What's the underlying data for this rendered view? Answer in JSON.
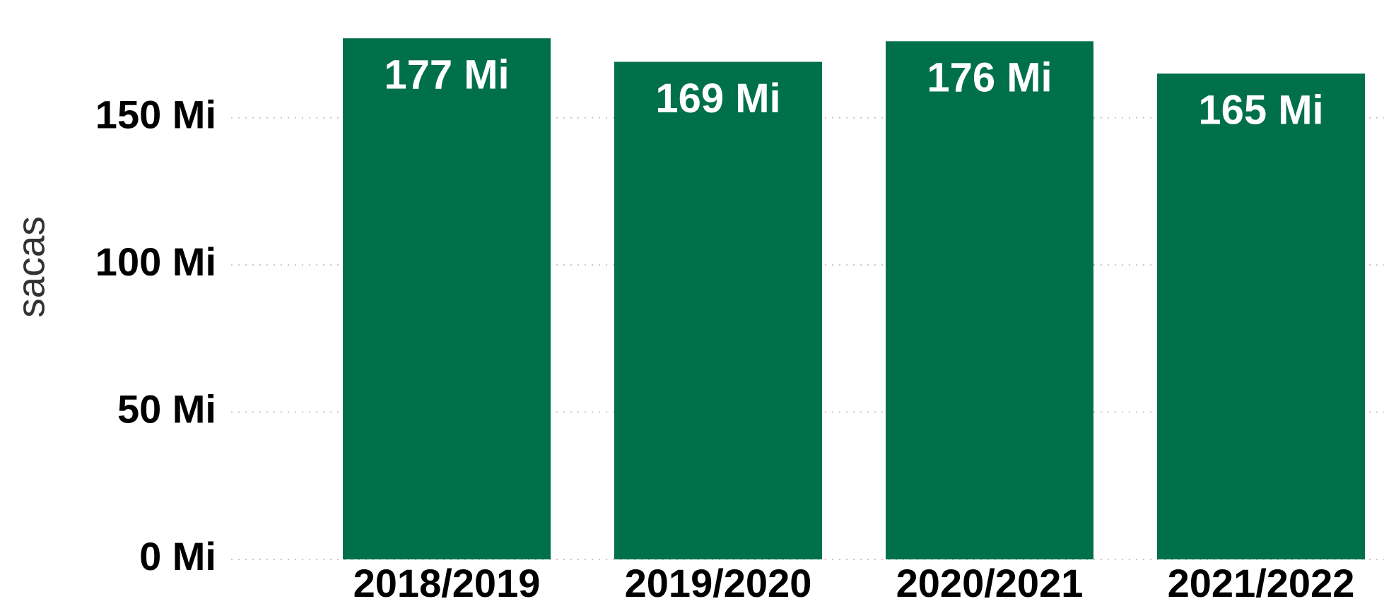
{
  "chart_data": {
    "type": "bar",
    "y_axis_label": "sacas",
    "categories": [
      "2018/2019",
      "2019/2020",
      "2020/2021",
      "2021/2022"
    ],
    "values": [
      177,
      169,
      176,
      165
    ],
    "value_labels": [
      "177 Mi",
      "169 Mi",
      "176 Mi",
      "165 Mi"
    ],
    "color": "#00704a",
    "ylim": [
      0,
      190
    ],
    "yticks": [
      {
        "value": 0,
        "label": "0 Mi"
      },
      {
        "value": 50,
        "label": "50 Mi"
      },
      {
        "value": 100,
        "label": "100 Mi"
      },
      {
        "value": 150,
        "label": "150 Mi"
      }
    ],
    "grid": true
  }
}
